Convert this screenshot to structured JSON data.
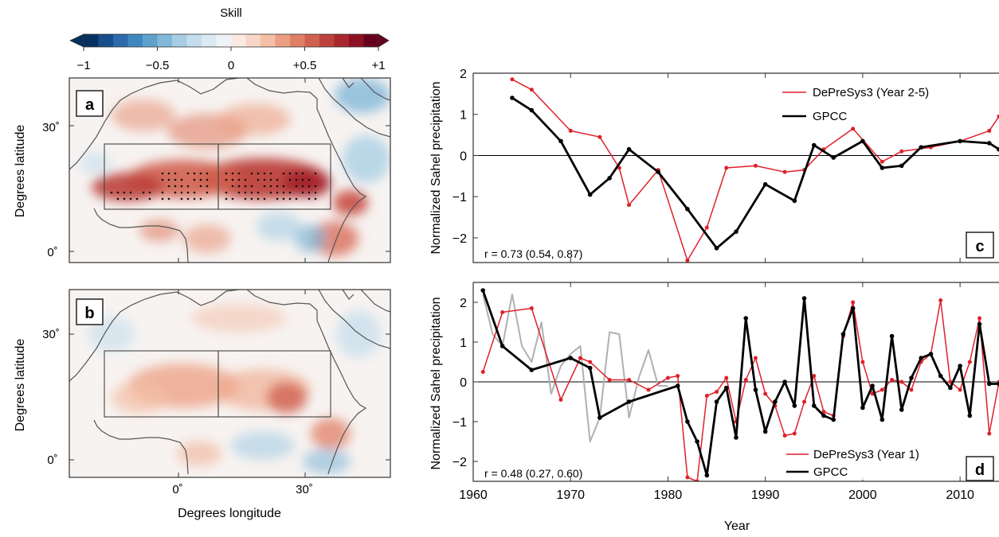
{
  "colorbar": {
    "title": "Skill",
    "ticks": [
      "−1",
      "−0.5",
      "0",
      "+0.5",
      "+1"
    ],
    "tick_values": [
      -1,
      -0.5,
      0,
      0.5,
      1
    ],
    "levels": 20,
    "colors": [
      "#053061",
      "#184e89",
      "#2c6aab",
      "#3f87bf",
      "#5ea1cc",
      "#82b8d9",
      "#a6cde4",
      "#c4dded",
      "#dbe9f3",
      "#eef3f7",
      "#fbeae2",
      "#f8d7c7",
      "#f4bfa5",
      "#ec9e82",
      "#e07f66",
      "#d0604f",
      "#bd413c",
      "#a8262e",
      "#8c1223",
      "#67001f"
    ]
  },
  "maps": {
    "ylabel": "Degrees latitude",
    "xlabel": "Degrees longitude",
    "ytick_labels": [
      "0˚",
      "30˚"
    ],
    "xtick_labels": [
      "0˚",
      "30˚"
    ],
    "panels": [
      {
        "label": "a"
      },
      {
        "label": "b"
      }
    ]
  },
  "chart_data": [
    {
      "type": "line",
      "panel": "c",
      "ylabel": "Normalized Sahel precipitation",
      "ylim": [
        -2.6,
        2
      ],
      "xlim": [
        1960,
        2014
      ],
      "yticks": [
        "−2",
        "−1",
        "0",
        "1",
        "2"
      ],
      "ytick_values": [
        -2,
        -1,
        0,
        1,
        2
      ],
      "annotation": "r = 0.73 (0.54, 0.87)",
      "legend": "top-right",
      "series": [
        {
          "name": "DePreSys3 (Year 2-5)",
          "color": "#e0202a",
          "x": [
            1964,
            1966,
            1970,
            1973,
            1975,
            1976,
            1979,
            1982,
            1984,
            1986,
            1989,
            1992,
            1994,
            1996,
            1999,
            2002,
            2004,
            2007,
            2010,
            2013,
            2014
          ],
          "y": [
            1.85,
            1.6,
            0.6,
            0.45,
            -0.3,
            -1.2,
            -0.35,
            -2.55,
            -1.75,
            -0.3,
            -0.25,
            -0.4,
            -0.35,
            0.15,
            0.65,
            -0.15,
            0.1,
            0.2,
            0.35,
            0.6,
            0.95
          ]
        },
        {
          "name": "GPCC",
          "color": "#000000",
          "x": [
            1964,
            1966,
            1969,
            1972,
            1974,
            1976,
            1979,
            1982,
            1985,
            1987,
            1990,
            1993,
            1995,
            1997,
            2000,
            2002,
            2004,
            2006,
            2010,
            2013,
            2014
          ],
          "y": [
            1.4,
            1.1,
            0.35,
            -0.95,
            -0.55,
            0.15,
            -0.4,
            -1.3,
            -2.25,
            -1.85,
            -0.7,
            -1.1,
            0.25,
            -0.05,
            0.35,
            -0.3,
            -0.25,
            0.2,
            0.35,
            0.3,
            0.15
          ]
        }
      ]
    },
    {
      "type": "line",
      "panel": "d",
      "ylabel": "Normalized Sahel precipitation",
      "xlabel": "Year",
      "ylim": [
        -2.5,
        2.5
      ],
      "xlim": [
        1960,
        2014
      ],
      "xticks": [
        "1960",
        "1970",
        "1980",
        "1990",
        "2000",
        "2010"
      ],
      "xtick_values": [
        1960,
        1970,
        1980,
        1990,
        2000,
        2010
      ],
      "yticks": [
        "−2",
        "−1",
        "0",
        "1",
        "2"
      ],
      "ytick_values": [
        -2,
        -1,
        0,
        1,
        2
      ],
      "annotation": "r = 0.48 (0.27, 0.60)",
      "legend": "bottom-right",
      "series": [
        {
          "name": "",
          "color": "#b0b0b0",
          "x": [
            1961,
            1962,
            1963,
            1964,
            1965,
            1966,
            1967,
            1968,
            1969,
            1970,
            1971,
            1972,
            1973,
            1974,
            1975,
            1976,
            1977,
            1978,
            1979,
            1980
          ],
          "y": [
            2.2,
            1.2,
            0.9,
            2.2,
            0.9,
            0.5,
            1.5,
            -0.3,
            0.4,
            0.7,
            0.9,
            -1.5,
            -0.9,
            1.25,
            1.2,
            -0.9,
            0.1,
            0.8,
            -0.1,
            -0.1
          ]
        },
        {
          "name": "DePreSys3 (Year 1)",
          "color": "#e0202a",
          "x": [
            1961,
            1963,
            1966,
            1969,
            1971,
            1972,
            1974,
            1976,
            1978,
            1980,
            1981,
            1982,
            1983,
            1984,
            1985,
            1986,
            1987,
            1988,
            1989,
            1990,
            1991,
            1992,
            1993,
            1994,
            1995,
            1996,
            1997,
            1998,
            1999,
            2000,
            2001,
            2002,
            2003,
            2004,
            2005,
            2006,
            2007,
            2008,
            2009,
            2010,
            2011,
            2012,
            2013,
            2014
          ],
          "y": [
            0.25,
            1.75,
            1.85,
            -0.45,
            0.6,
            0.5,
            0.05,
            0.05,
            -0.2,
            0.1,
            0.15,
            -2.4,
            -2.5,
            -0.35,
            -0.25,
            0.1,
            -1.0,
            0.05,
            0.6,
            -0.3,
            -0.6,
            -1.35,
            -1.3,
            -0.5,
            0.15,
            -0.75,
            -0.85,
            1.15,
            2.0,
            0.5,
            -0.3,
            -0.2,
            0.05,
            0.0,
            -0.2,
            0.5,
            0.7,
            2.05,
            0.0,
            -0.2,
            0.5,
            1.6,
            -1.3,
            0.0
          ]
        },
        {
          "name": "GPCC",
          "color": "#000000",
          "x": [
            1961,
            1963,
            1966,
            1970,
            1972,
            1973,
            1976,
            1981,
            1982,
            1983,
            1984,
            1985,
            1986,
            1987,
            1988,
            1989,
            1990,
            1991,
            1992,
            1993,
            1994,
            1995,
            1996,
            1997,
            1998,
            1999,
            2000,
            2001,
            2002,
            2003,
            2004,
            2005,
            2006,
            2007,
            2008,
            2009,
            2010,
            2011,
            2012,
            2013,
            2014
          ],
          "y": [
            2.3,
            0.9,
            0.3,
            0.6,
            0.35,
            -0.9,
            -0.5,
            -0.1,
            -1.0,
            -1.5,
            -2.35,
            -0.5,
            -0.15,
            -1.4,
            1.6,
            -0.2,
            -1.25,
            -0.5,
            0.0,
            -0.6,
            2.1,
            -0.6,
            -0.85,
            -0.95,
            1.2,
            1.85,
            -0.65,
            -0.1,
            -0.95,
            1.15,
            -0.7,
            0.1,
            0.6,
            0.7,
            0.15,
            -0.15,
            0.4,
            -0.85,
            1.45,
            -0.05,
            -0.05
          ]
        }
      ]
    }
  ]
}
